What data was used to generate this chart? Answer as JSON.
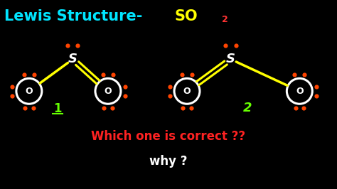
{
  "bg_color": "#000000",
  "title_lewis": "Lewis Structure-",
  "title_so": "SO",
  "title_2": "2",
  "title_lewis_color": "#00e5ff",
  "title_so_color": "#ffff00",
  "title_2_color": "#ff3333",
  "question1": "Which one is correct ??",
  "question1_color": "#ff2222",
  "question2": "why ?",
  "question2_color": "#ffffff",
  "dot_color": "#ff4400",
  "s_color": "#ffffff",
  "o_color": "#ffffff",
  "bond_color": "#ffff00",
  "num1_color": "#66ff00",
  "num2_color": "#66ff00",
  "fig_w": 4.74,
  "fig_h": 2.66,
  "dpi": 100
}
